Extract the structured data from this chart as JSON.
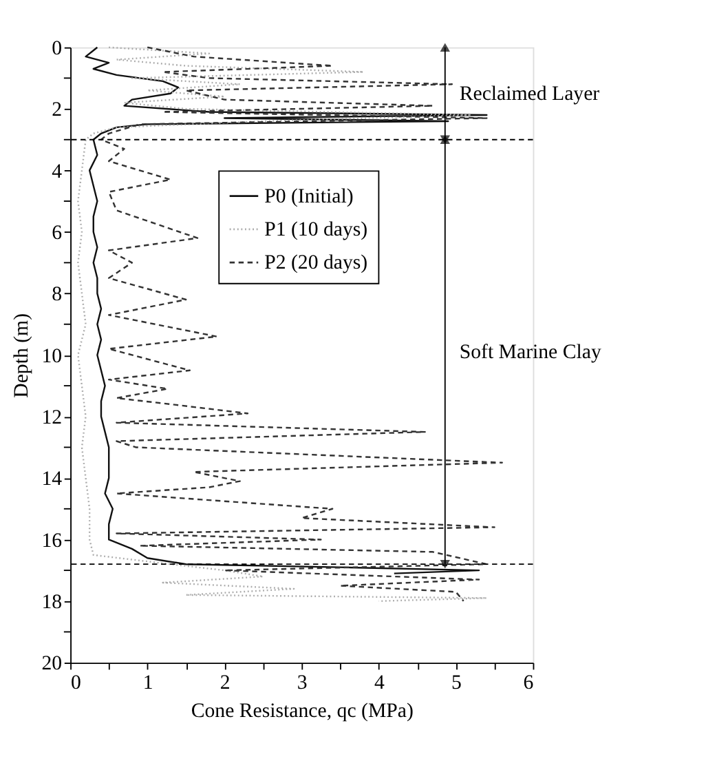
{
  "chart_data": {
    "type": "line",
    "xlabel": "Cone Resistance, qc (MPa)",
    "ylabel": "Depth (m)",
    "xlim": [
      0,
      6
    ],
    "ylim": [
      20,
      0
    ],
    "xticks": [
      0,
      {
        "value": 0.5,
        "label": null
      },
      1,
      {
        "value": 1.5,
        "label": null
      },
      2,
      {
        "value": 2.5,
        "label": null
      },
      3,
      {
        "value": 3.5,
        "label": null
      },
      4,
      {
        "value": 4.5,
        "label": null
      },
      5,
      {
        "value": 5.5,
        "label": null
      },
      6
    ],
    "yticks": [
      0,
      {
        "value": 1,
        "label": null
      },
      2,
      {
        "value": 3,
        "label": null
      },
      4,
      {
        "value": 5,
        "label": null
      },
      6,
      {
        "value": 7,
        "label": null
      },
      8,
      {
        "value": 9,
        "label": null
      },
      10,
      {
        "value": 11,
        "label": null
      },
      12,
      {
        "value": 13,
        "label": null
      },
      14,
      {
        "value": 15,
        "label": null
      },
      16,
      {
        "value": 17,
        "label": null
      },
      18,
      {
        "value": 19,
        "label": null
      },
      20
    ],
    "series": [
      {
        "name": "P0 (Initial)",
        "color": "#111111",
        "line_style": "solid",
        "x": [
          0.35,
          0.3,
          0.2,
          0.5,
          0.3,
          0.6,
          1.2,
          1.4,
          1.3,
          0.8,
          0.7,
          1.8,
          5.4,
          2.0,
          4.9,
          1.0,
          0.6,
          0.4,
          0.3,
          0.35,
          0.25,
          0.3,
          0.35,
          0.3,
          0.3,
          0.35,
          0.3,
          0.35,
          0.35,
          0.4,
          0.35,
          0.4,
          0.35,
          0.4,
          0.45,
          0.4,
          0.4,
          0.45,
          0.5,
          0.5,
          0.5,
          0.45,
          0.55,
          0.5,
          0.5,
          0.8,
          1.0,
          1.5,
          3.5,
          5.3,
          4.2
        ],
        "values": [
          0,
          0.1,
          0.3,
          0.5,
          0.7,
          0.9,
          1.1,
          1.3,
          1.5,
          1.7,
          1.9,
          2.1,
          2.2,
          2.3,
          2.4,
          2.5,
          2.6,
          2.8,
          3.0,
          3.5,
          4.0,
          4.5,
          5.0,
          5.5,
          6.0,
          6.5,
          7.0,
          7.5,
          8.0,
          8.5,
          9.0,
          9.5,
          10.0,
          10.5,
          11.0,
          11.5,
          12.0,
          12.5,
          13.0,
          13.5,
          14.0,
          14.5,
          15.0,
          15.5,
          16.0,
          16.3,
          16.6,
          16.8,
          16.9,
          17.0,
          17.1
        ]
      },
      {
        "name": "P1 (10 days)",
        "color": "#aaaaaa",
        "line_style": "dotted",
        "x": [
          0.5,
          1.8,
          0.6,
          1.5,
          3.8,
          0.8,
          2.2,
          1.0,
          2.0,
          0.7,
          1.5,
          5.2,
          2.5,
          0.6,
          0.3,
          0.2,
          0.15,
          0.1,
          0.15,
          0.1,
          0.15,
          0.2,
          0.1,
          0.15,
          0.2,
          0.15,
          0.2,
          0.25,
          0.25,
          0.3,
          1.3,
          2.0,
          2.5,
          1.2,
          2.9,
          1.5,
          5.4,
          4.0
        ],
        "values": [
          0,
          0.2,
          0.4,
          0.6,
          0.8,
          1.0,
          1.2,
          1.4,
          1.6,
          1.8,
          2.0,
          2.2,
          2.4,
          2.6,
          2.8,
          3.0,
          4,
          5,
          6,
          7,
          8,
          9,
          10,
          11,
          12,
          13,
          14,
          15,
          16,
          16.5,
          16.8,
          17.0,
          17.2,
          17.4,
          17.6,
          17.8,
          17.9,
          18.0
        ]
      },
      {
        "name": "P2 (20 days)",
        "color": "#333333",
        "line_style": "dashed",
        "x": [
          1.0,
          1.6,
          3.4,
          1.2,
          1.8,
          4.95,
          1.5,
          2.0,
          4.7,
          1.2,
          5.4,
          0.9,
          0.5,
          0.4,
          0.7,
          0.5,
          1.3,
          0.5,
          0.6,
          1.65,
          0.5,
          0.8,
          0.5,
          1.5,
          0.5,
          1.9,
          0.5,
          1.55,
          0.5,
          1.26,
          0.6,
          1.3,
          2.3,
          0.6,
          4.6,
          0.6,
          0.85,
          5.6,
          1.6,
          2.2,
          1.8,
          0.6,
          1.7,
          3.4,
          3.0,
          5.5,
          0.6,
          3.25,
          0.9,
          4.7,
          5.4,
          2.0,
          5.3,
          3.5,
          5.0,
          5.1
        ],
        "values": [
          0,
          0.3,
          0.6,
          0.8,
          1.0,
          1.2,
          1.4,
          1.7,
          1.9,
          2.1,
          2.3,
          2.5,
          2.8,
          3.0,
          3.3,
          3.7,
          4.3,
          4.7,
          5.3,
          6.2,
          6.6,
          7.0,
          7.5,
          8.2,
          8.7,
          9.4,
          9.8,
          10.5,
          10.8,
          11.1,
          11.4,
          11.6,
          11.9,
          12.2,
          12.5,
          12.8,
          13.0,
          13.5,
          13.8,
          14.1,
          14.3,
          14.5,
          14.7,
          15.0,
          15.3,
          15.6,
          15.8,
          16.0,
          16.2,
          16.4,
          16.8,
          17.0,
          17.3,
          17.5,
          17.7,
          18.0
        ]
      }
    ],
    "ref_lines": [
      {
        "axis": "y",
        "value": 3.0,
        "label": null,
        "color": "#000000",
        "line_style": "dashed"
      },
      {
        "axis": "y",
        "value": 16.8,
        "label": null,
        "color": "#000000",
        "line_style": "dashed"
      }
    ],
    "annotations": [
      "Reclaimed Layer",
      "Soft Marine Clay"
    ],
    "legend": "top",
    "grid": false,
    "marker": "none"
  }
}
